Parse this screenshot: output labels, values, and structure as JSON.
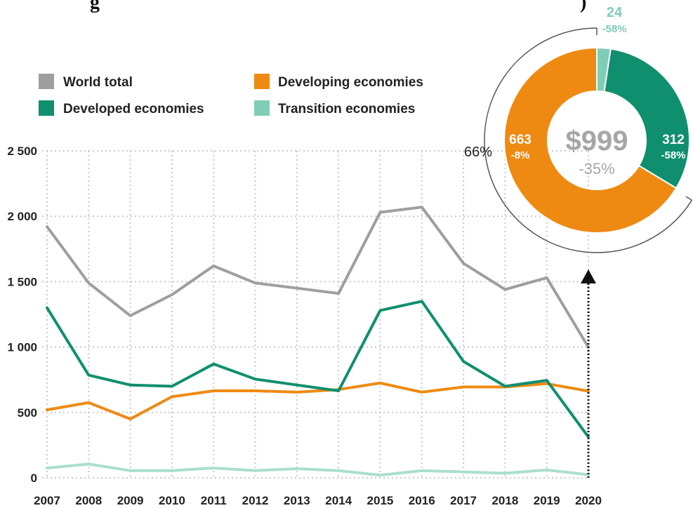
{
  "title_fragment": "g",
  "title_fragment_right": ")",
  "chart_data": {
    "type": "line",
    "x": [
      2007,
      2008,
      2009,
      2010,
      2011,
      2012,
      2013,
      2014,
      2015,
      2016,
      2017,
      2018,
      2019,
      2020
    ],
    "x_tick_labels": [
      "2007",
      "2008",
      "2009",
      "2010",
      "2011",
      "2012",
      "2013",
      "2014",
      "2015",
      "2016",
      "2017",
      "2018",
      "2019",
      "2020"
    ],
    "y_ticks": [
      0,
      500,
      1000,
      1500,
      2000,
      2500
    ],
    "y_tick_labels": [
      "0",
      "500",
      "1 000",
      "1 500",
      "2 000",
      "2 500"
    ],
    "ylim": [
      0,
      2500
    ],
    "grid": true,
    "series": [
      {
        "name": "World total",
        "color": "#9e9e9e",
        "values": [
          1920,
          1490,
          1240,
          1400,
          1620,
          1490,
          1450,
          1410,
          2030,
          2070,
          1640,
          1440,
          1530,
          999
        ]
      },
      {
        "name": "Developed economies",
        "color": "#0f8f6e",
        "values": [
          1300,
          785,
          710,
          700,
          870,
          755,
          710,
          665,
          1280,
          1350,
          890,
          700,
          745,
          312
        ]
      },
      {
        "name": "Developing economies",
        "color": "#ee8a12",
        "values": [
          520,
          575,
          450,
          620,
          665,
          665,
          655,
          675,
          725,
          655,
          695,
          695,
          720,
          663
        ]
      },
      {
        "name": "Transition economies",
        "color": "#a9dfcc",
        "values": [
          75,
          105,
          55,
          55,
          75,
          55,
          70,
          55,
          20,
          55,
          45,
          35,
          60,
          24
        ]
      }
    ],
    "legend_placement": "top-left",
    "donut": {
      "center_value": "$999",
      "center_change": "-35%",
      "outer_share_label": "66%",
      "segments": [
        {
          "name": "Developing economies",
          "value": 663,
          "value_label": "663",
          "change_label": "-8%",
          "color": "#ee8a12"
        },
        {
          "name": "Transition economies",
          "value": 24,
          "value_label": "24",
          "change_label": "-58%",
          "color": "#7fcdb4"
        },
        {
          "name": "Developed economies",
          "value": 312,
          "value_label": "312",
          "change_label": "-58%",
          "color": "#0f8f6e"
        }
      ]
    }
  }
}
